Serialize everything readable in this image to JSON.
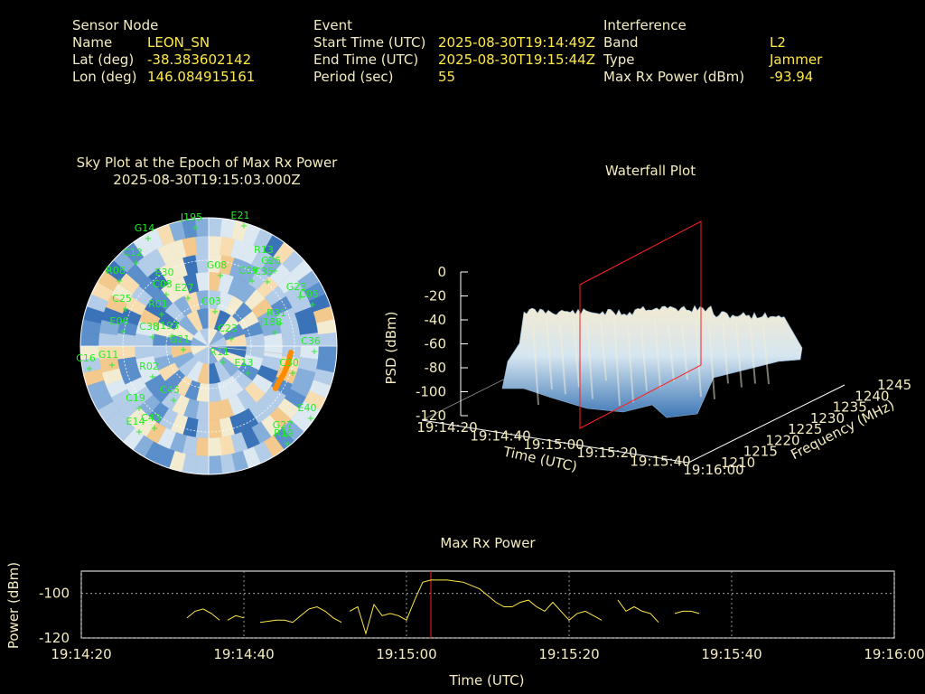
{
  "info": {
    "sensor": {
      "header": "Sensor Node",
      "rows": [
        {
          "label": "Name",
          "value": "LEON_SN"
        },
        {
          "label": "Lat (deg)",
          "value": "-38.383602142"
        },
        {
          "label": "Lon (deg)",
          "value": "146.084915161"
        }
      ]
    },
    "event": {
      "header": "Event",
      "rows": [
        {
          "label": "Start Time (UTC)",
          "value": "2025-08-30T19:14:49Z"
        },
        {
          "label": "End Time (UTC)",
          "value": "2025-08-30T19:15:44Z"
        },
        {
          "label": "Period (sec)",
          "value": "55"
        }
      ]
    },
    "interference": {
      "header": "Interference",
      "rows": [
        {
          "label": "Band",
          "value": "L2"
        },
        {
          "label": "Type",
          "value": "Jammer"
        },
        {
          "label": "Max Rx Power (dBm)",
          "value": "-93.94"
        }
      ]
    }
  },
  "skyplot": {
    "title": "Sky Plot at the Epoch of Max Rx Power",
    "subtitle": "2025-08-30T19:15:03.000Z",
    "satellites": [
      "J195",
      "C03",
      "E21",
      "G14",
      "C12",
      "R13",
      "C26",
      "R08",
      "C35",
      "C09",
      "E30",
      "G23",
      "C05",
      "E27",
      "C03",
      "E06",
      "J188",
      "C23",
      "J193",
      "C38",
      "R31",
      "G21",
      "C16",
      "G11",
      "E14",
      "C45",
      "R02",
      "C36",
      "G27",
      "R19",
      "E40",
      "C43",
      "E13",
      "C30",
      "R11",
      "R01",
      "C25",
      "G08",
      "C19"
    ]
  },
  "waterfall": {
    "title": "Waterfall Plot",
    "zlabel": "PSD (dBm)",
    "xlabel": "Time (UTC)",
    "ylabel": "Frequency (MHz)",
    "zticks": [
      "0",
      "-20",
      "-40",
      "-60",
      "-80",
      "-100",
      "-120"
    ],
    "xticks": [
      "19:14:20",
      "19:14:40",
      "19:15:00",
      "19:15:20",
      "19:15:40",
      "19:16:00"
    ],
    "yticks": [
      "1210",
      "1215",
      "1220",
      "1225",
      "1230",
      "1235",
      "1240",
      "1245"
    ]
  },
  "colors": {
    "background": "#000000",
    "label_text": "#f4ecc0",
    "value_text": "#ffe94a",
    "satellite": "#22ee22",
    "marker": "#ff2020",
    "max_power_line": "#ffe94a",
    "jammer_track": "#ff8c00"
  },
  "chart_data": {
    "type": "line",
    "title": "Max Rx Power",
    "xlabel": "Time (UTC)",
    "ylabel": "Power (dBm)",
    "xlim": [
      "19:14:20",
      "19:16:00"
    ],
    "ylim": [
      -120,
      -90
    ],
    "xticks": [
      "19:14:20",
      "19:14:40",
      "19:15:00",
      "19:15:20",
      "19:15:40",
      "19:16:00"
    ],
    "yticks": [
      "-100",
      "-120"
    ],
    "grid": true,
    "marker_time": "19:15:03",
    "segments": [
      [
        [
          "19:14:33",
          -111
        ],
        [
          "19:14:34",
          -108
        ],
        [
          "19:14:35",
          -107
        ],
        [
          "19:14:36",
          -109
        ],
        [
          "19:14:37",
          -112
        ]
      ],
      [
        [
          "19:14:38",
          -112
        ],
        [
          "19:14:39",
          -110
        ],
        [
          "19:14:40",
          -111
        ]
      ],
      [
        [
          "19:14:42",
          -113
        ],
        [
          "19:14:44",
          -112
        ],
        [
          "19:14:45",
          -112
        ],
        [
          "19:14:46",
          -113
        ],
        [
          "19:14:47",
          -110
        ],
        [
          "19:14:48",
          -107
        ],
        [
          "19:14:49",
          -106
        ],
        [
          "19:14:50",
          -108
        ],
        [
          "19:14:51",
          -111
        ],
        [
          "19:14:52",
          -113
        ]
      ],
      [
        [
          "19:14:53",
          -108
        ],
        [
          "19:14:54",
          -106
        ],
        [
          "19:14:55",
          -118
        ],
        [
          "19:14:56",
          -105
        ],
        [
          "19:14:57",
          -110
        ],
        [
          "19:14:58",
          -109
        ],
        [
          "19:14:59",
          -110
        ],
        [
          "19:15:00",
          -112
        ],
        [
          "19:15:01",
          -103
        ],
        [
          "19:15:02",
          -95
        ],
        [
          "19:15:03",
          -94
        ],
        [
          "19:15:05",
          -94
        ],
        [
          "19:15:07",
          -95
        ],
        [
          "19:15:09",
          -98
        ],
        [
          "19:15:10",
          -101
        ],
        [
          "19:15:11",
          -104
        ],
        [
          "19:15:12",
          -106
        ],
        [
          "19:15:13",
          -106
        ],
        [
          "19:15:14",
          -104
        ],
        [
          "19:15:15",
          -103
        ],
        [
          "19:15:16",
          -106
        ],
        [
          "19:15:17",
          -108
        ],
        [
          "19:15:18",
          -104
        ],
        [
          "19:15:19",
          -108
        ],
        [
          "19:15:20",
          -112
        ],
        [
          "19:15:21",
          -109
        ],
        [
          "19:15:22",
          -108
        ],
        [
          "19:15:23",
          -110
        ],
        [
          "19:15:24",
          -112
        ]
      ],
      [
        [
          "19:15:26",
          -103
        ],
        [
          "19:15:27",
          -108
        ],
        [
          "19:15:28",
          -106
        ],
        [
          "19:15:29",
          -108
        ],
        [
          "19:15:30",
          -109
        ],
        [
          "19:15:31",
          -113
        ]
      ],
      [
        [
          "19:15:33",
          -109
        ],
        [
          "19:15:34",
          -108
        ],
        [
          "19:15:35",
          -108
        ],
        [
          "19:15:36",
          -109
        ]
      ]
    ]
  }
}
